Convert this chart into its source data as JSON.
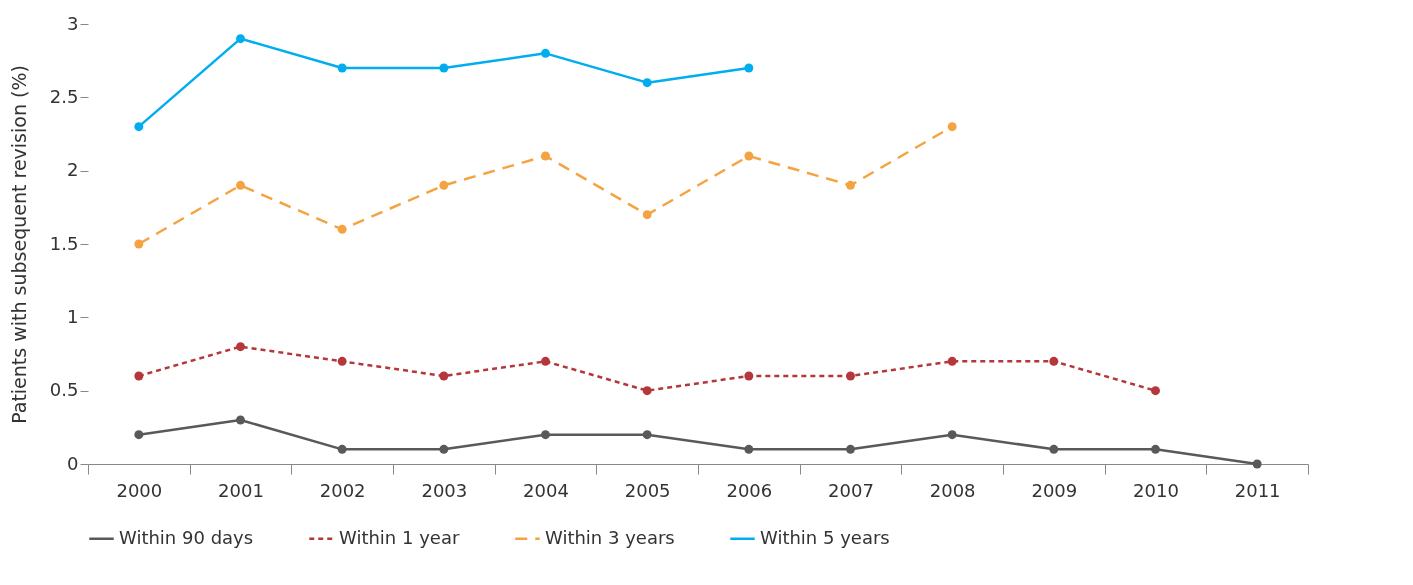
{
  "chart_data": {
    "type": "line",
    "ylabel": "Patients with subsequent revision (%)",
    "categories": [
      "2000",
      "2001",
      "2002",
      "2003",
      "2004",
      "2005",
      "2006",
      "2007",
      "2008",
      "2009",
      "2010",
      "2011"
    ],
    "series": [
      {
        "name": "Within 90 days",
        "color": "#58595b",
        "line_style": "solid",
        "values": [
          0.2,
          0.3,
          0.1,
          0.1,
          0.2,
          0.2,
          0.1,
          0.1,
          0.2,
          0.1,
          0.1,
          0
        ]
      },
      {
        "name": "Within 1 year",
        "color": "#b5373b",
        "line_style": "dotted",
        "values": [
          0.6,
          0.8,
          0.7,
          0.6,
          0.7,
          0.5,
          0.6,
          0.6,
          0.7,
          0.7,
          0.5,
          null
        ]
      },
      {
        "name": "Within 3 years",
        "color": "#f5a341",
        "line_style": "dashed",
        "values": [
          1.5,
          1.9,
          1.6,
          1.9,
          2.1,
          1.7,
          2.1,
          1.9,
          2.3,
          null,
          null,
          null
        ]
      },
      {
        "name": "Within 5 years",
        "color": "#00aeef",
        "line_style": "solid",
        "values": [
          2.3,
          2.9,
          2.7,
          2.7,
          2.8,
          2.6,
          2.7,
          null,
          null,
          null,
          null,
          null
        ]
      }
    ],
    "ylim": [
      0,
      3
    ],
    "yticks": [
      0,
      0.5,
      1,
      1.5,
      2,
      2.5,
      3
    ],
    "grid": false,
    "legend": "bottom",
    "marker": "circle"
  }
}
